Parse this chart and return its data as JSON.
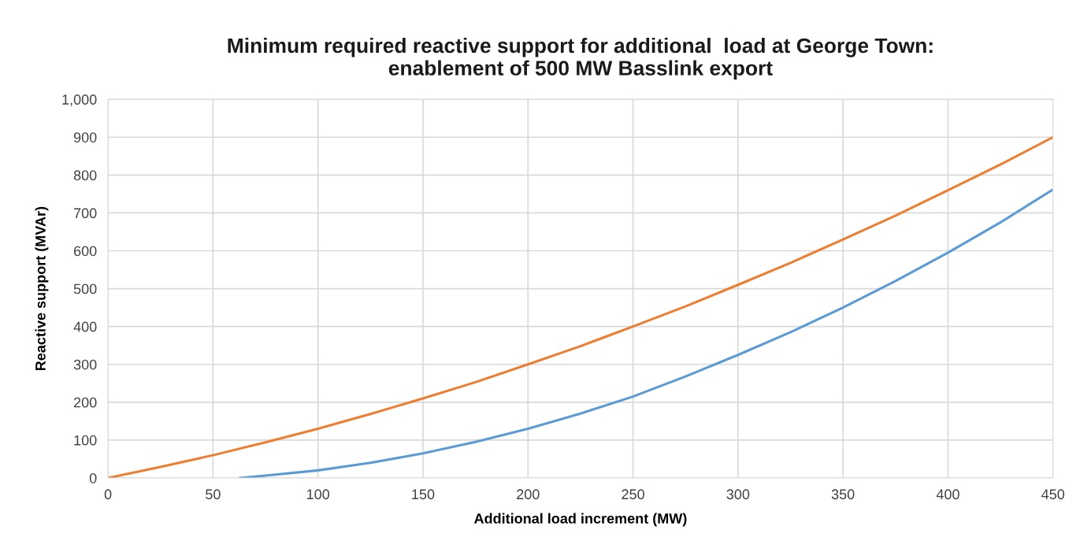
{
  "chart_data": {
    "type": "line",
    "title": "Minimum required reactive support for additional  load at George Town:\nenablement of 500 MW Basslink export",
    "xlabel": "Additional load increment (MW)",
    "ylabel": "Reactive support (MVAr)",
    "series": [
      {
        "color": "#ed7d31",
        "x": [
          0,
          25,
          50,
          75,
          100,
          125,
          150,
          175,
          200,
          225,
          250,
          275,
          300,
          325,
          350,
          375,
          400,
          425,
          450
        ],
        "values": [
          0,
          29,
          60,
          94,
          130,
          169,
          210,
          253,
          300,
          348,
          400,
          453,
          510,
          568,
          630,
          693,
          760,
          828,
          900
        ]
      },
      {
        "color": "#5b9bd5",
        "x": [
          63,
          75,
          100,
          125,
          150,
          175,
          200,
          225,
          250,
          275,
          300,
          325,
          350,
          375,
          400,
          425,
          450
        ],
        "values": [
          0,
          6,
          20,
          40,
          65,
          95,
          130,
          170,
          215,
          268,
          325,
          385,
          450,
          520,
          595,
          675,
          762
        ]
      }
    ],
    "xlim": [
      0,
      450
    ],
    "xticks": [
      0,
      50,
      100,
      150,
      200,
      250,
      300,
      350,
      400,
      450
    ],
    "ylim": [
      0,
      1000
    ],
    "yticks": [
      0,
      100,
      200,
      300,
      400,
      500,
      600,
      700,
      800,
      900,
      {
        "value": 1000,
        "label": "1,000"
      }
    ],
    "grid": true,
    "marker": "none",
    "line_style": "solid"
  }
}
